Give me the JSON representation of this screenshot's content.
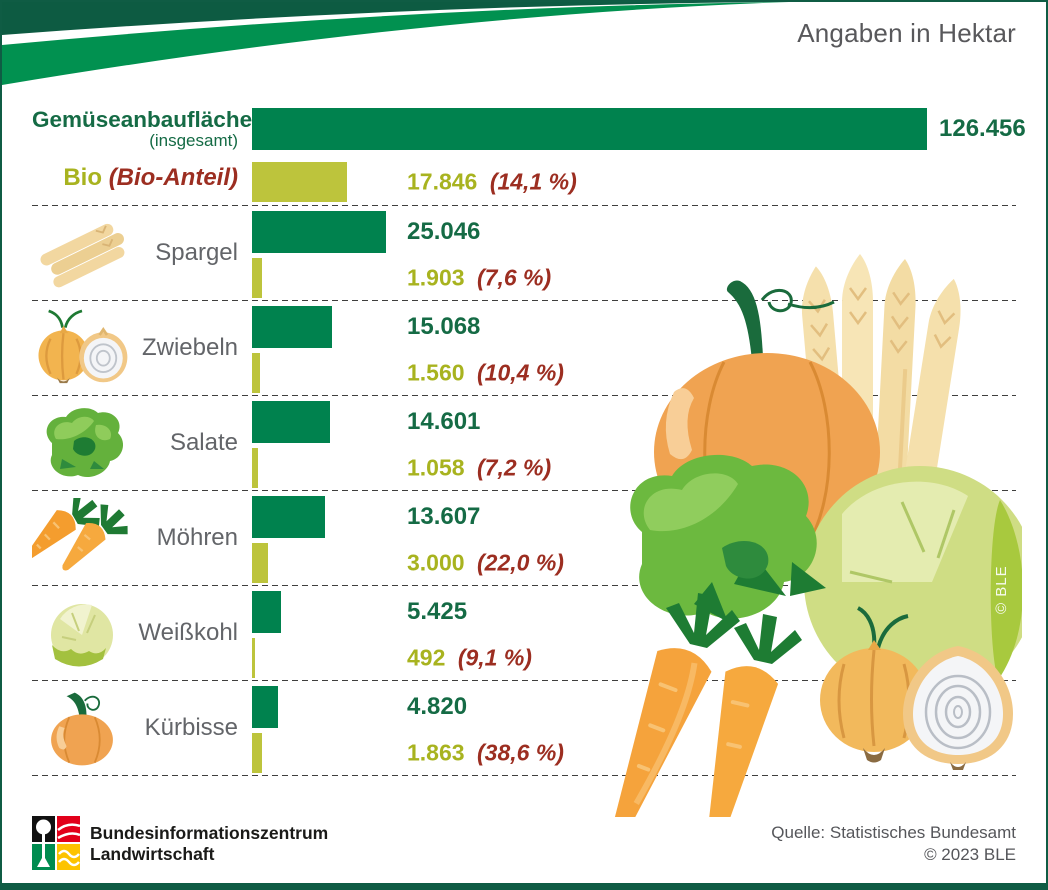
{
  "chart_data": {
    "type": "bar",
    "title": "Angaben in Hektar",
    "unit": "Hektar",
    "xlim": [
      0,
      126456
    ],
    "grid": false,
    "legend": false,
    "total": {
      "label": "Gemüseanbaufläche",
      "sublabel": "(insgesamt)",
      "value": 126456,
      "value_label": "126.456"
    },
    "bio": {
      "label": "Bio",
      "sublabel": "(Bio-Anteil)",
      "value": 17846,
      "value_label": "17.846",
      "percent_label": "(14,1 %)"
    },
    "rows": [
      {
        "label": "Spargel",
        "icon": "asparagus-icon",
        "value": 25046,
        "value_label": "25.046",
        "bio_value": 1903,
        "bio_value_label": "1.903",
        "bio_percent_label": "(7,6 %)"
      },
      {
        "label": "Zwiebeln",
        "icon": "onion-icon",
        "value": 15068,
        "value_label": "15.068",
        "bio_value": 1560,
        "bio_value_label": "1.560",
        "bio_percent_label": "(10,4 %)"
      },
      {
        "label": "Salate",
        "icon": "lettuce-icon",
        "value": 14601,
        "value_label": "14.601",
        "bio_value": 1058,
        "bio_value_label": "1.058",
        "bio_percent_label": "(7,2 %)"
      },
      {
        "label": "Möhren",
        "icon": "carrot-icon",
        "value": 13607,
        "value_label": "13.607",
        "bio_value": 3000,
        "bio_value_label": "3.000",
        "bio_percent_label": "(22,0 %)"
      },
      {
        "label": "Weißkohl",
        "icon": "cabbage-icon",
        "value": 5425,
        "value_label": "5.425",
        "bio_value": 492,
        "bio_value_label": "492",
        "bio_percent_label": "(9,1 %)"
      },
      {
        "label": "Kürbisse",
        "icon": "pumpkin-icon",
        "value": 4820,
        "value_label": "4.820",
        "bio_value": 1863,
        "bio_value_label": "1.863",
        "bio_percent_label": "(38,6 %)"
      }
    ]
  },
  "colors": {
    "bar_green": "#00824e",
    "bar_bio": "#bdc43c",
    "text_green": "#156b45",
    "text_bio": "#a8b31f",
    "text_red": "#9c2e21",
    "text_gray": "#636569",
    "swoosh_dark": "#0d5b42",
    "swoosh_light": "#019150"
  },
  "illustration": {
    "credit": "© BLE"
  },
  "footer": {
    "org_line1": "Bundesinformationszentrum",
    "org_line2": "Landwirtschaft",
    "source": "Quelle: Statistisches Bundesamt",
    "copyright": "© 2023 BLE"
  }
}
